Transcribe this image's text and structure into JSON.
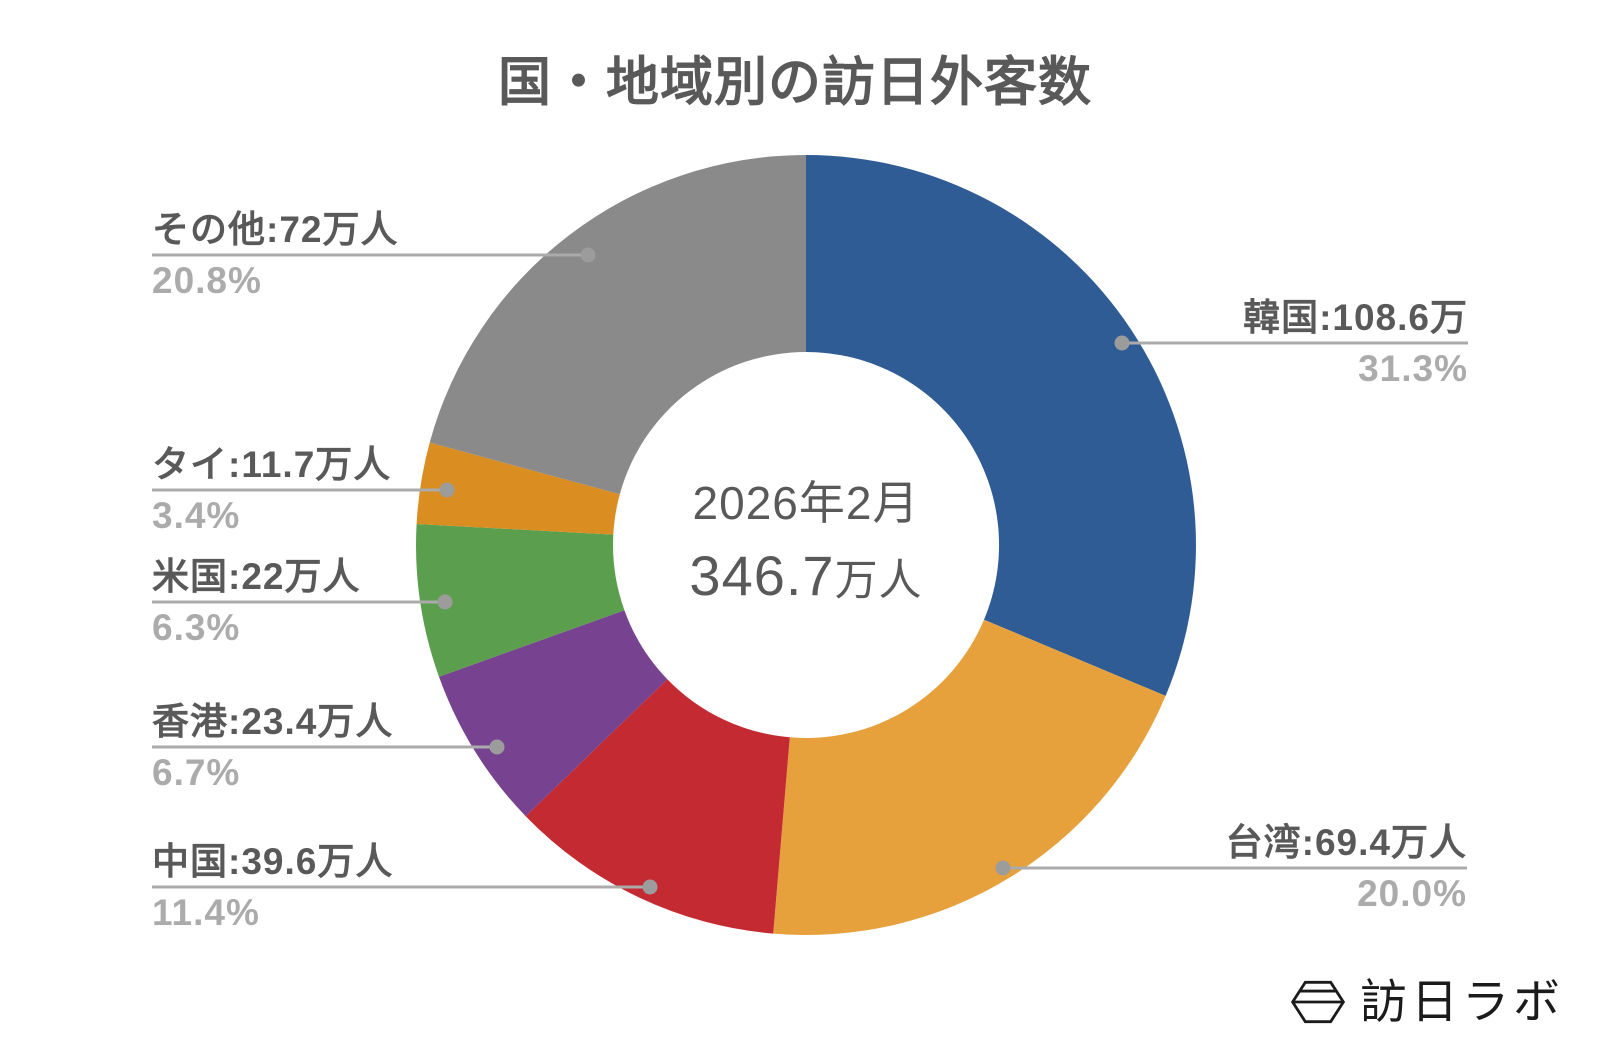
{
  "title": "国・地域別の訪日外客数",
  "center": {
    "period": "2026年2月",
    "total_value": "346.7",
    "total_unit": "万人"
  },
  "logo": {
    "text": "訪日ラボ"
  },
  "colors": {
    "title_text": "#595959",
    "label_text": "#595959",
    "percent_text": "#ABABAB",
    "leader_line": "#ABABAB",
    "leader_dot": "#9C9C9C",
    "logo_text": "#1B1B1B"
  },
  "chart_data": {
    "type": "pie",
    "subtype": "donut",
    "title": "国・地域別の訪日外客数",
    "center_label_line1": "2026年2月",
    "center_label_line2": "346.7万人",
    "total": 346.7,
    "unit": "万人",
    "start_angle_deg": 0,
    "direction": "clockwise",
    "legend_position": "outside-callouts",
    "categories": [
      "韓国",
      "台湾",
      "中国",
      "香港",
      "米国",
      "タイ",
      "その他"
    ],
    "values": [
      108.6,
      69.4,
      39.6,
      23.4,
      22,
      11.7,
      72
    ],
    "percents": [
      31.3,
      20.0,
      11.4,
      6.7,
      6.3,
      3.4,
      20.8
    ],
    "colors": [
      "#2F5C95",
      "#E6A13C",
      "#C42A32",
      "#77428F",
      "#5B9E4D",
      "#DA8D20",
      "#8A8A8A"
    ],
    "labels": [
      {
        "text": "韓国:108.6万",
        "pct": "31.3%"
      },
      {
        "text": "台湾:69.4万人",
        "pct": "20.0%"
      },
      {
        "text": "中国:39.6万人",
        "pct": "11.4%"
      },
      {
        "text": "香港:23.4万人",
        "pct": "6.7%"
      },
      {
        "text": "米国:22万人",
        "pct": "6.3%"
      },
      {
        "text": "タイ:11.7万人",
        "pct": "3.4%"
      },
      {
        "text": "その他:72万人",
        "pct": "20.8%"
      }
    ]
  }
}
